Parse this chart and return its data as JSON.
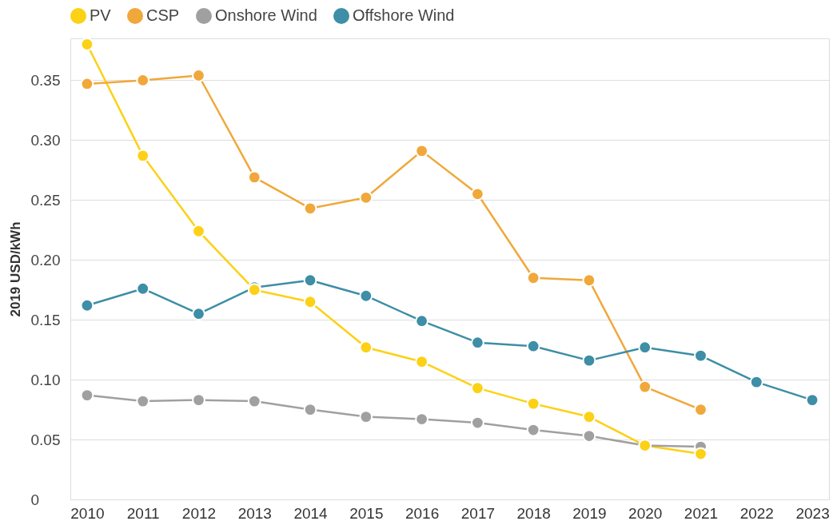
{
  "chart_data": {
    "type": "line",
    "ylabel": "2019 USD/kWh",
    "categories": [
      "2010",
      "2011",
      "2012",
      "2013",
      "2014",
      "2015",
      "2016",
      "2017",
      "2018",
      "2019",
      "2020",
      "2021",
      "2022",
      "2023"
    ],
    "series": [
      {
        "name": "PV",
        "color": "#fcd116",
        "values": [
          0.38,
          0.287,
          0.224,
          0.175,
          0.165,
          0.127,
          0.115,
          0.093,
          0.08,
          0.069,
          0.045,
          0.038,
          null,
          null
        ]
      },
      {
        "name": "CSP",
        "color": "#f0a83a",
        "values": [
          0.347,
          0.35,
          0.354,
          0.269,
          0.243,
          0.252,
          0.291,
          0.255,
          0.185,
          0.183,
          0.094,
          0.075,
          null,
          null
        ]
      },
      {
        "name": "Onshore Wind",
        "color": "#a0a0a0",
        "values": [
          0.087,
          0.082,
          0.083,
          0.082,
          0.075,
          0.069,
          0.067,
          0.064,
          0.058,
          0.053,
          0.045,
          0.044,
          null,
          null
        ]
      },
      {
        "name": "Offshore Wind",
        "color": "#3d8ea6",
        "values": [
          0.162,
          0.176,
          0.155,
          0.177,
          0.183,
          0.17,
          0.149,
          0.131,
          0.128,
          0.116,
          0.127,
          0.12,
          0.098,
          0.083
        ]
      }
    ],
    "ylim": [
      0,
      0.385
    ],
    "yticks": [
      0,
      {
        "value": 0.05,
        "label": "0.05"
      },
      {
        "value": 0.1,
        "label": "0.10"
      },
      {
        "value": 0.15,
        "label": "0.15"
      },
      {
        "value": 0.2,
        "label": "0.20"
      },
      {
        "value": 0.25,
        "label": "0.25"
      },
      {
        "value": 0.3,
        "label": "0.30"
      },
      {
        "value": 0.35,
        "label": "0.35"
      }
    ],
    "grid": "y",
    "legend": "top",
    "marker": "circle",
    "line_style": "solid"
  }
}
